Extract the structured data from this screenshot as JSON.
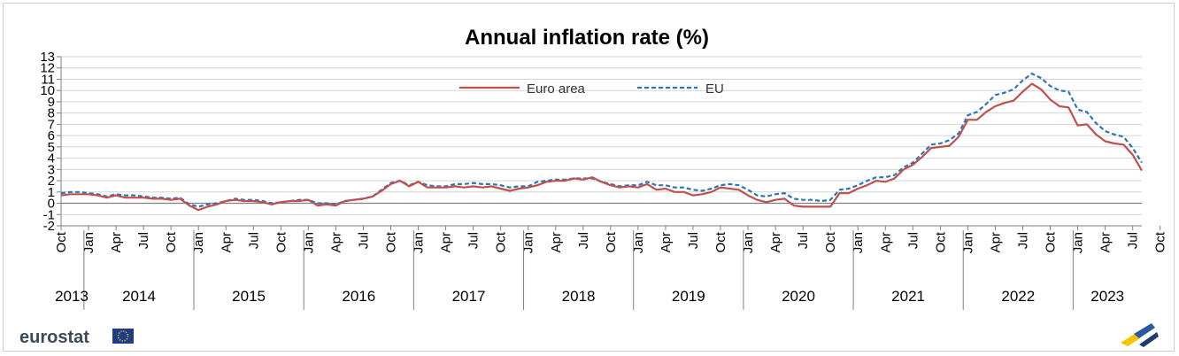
{
  "brand": {
    "name": "eurostat"
  },
  "chart_data": {
    "type": "line",
    "title": "Annual inflation rate (%)",
    "ylim": [
      -2,
      13
    ],
    "yticks": [
      -2,
      -1,
      0,
      1,
      2,
      3,
      4,
      5,
      6,
      7,
      8,
      9,
      10,
      11,
      12,
      13
    ],
    "grid": true,
    "legend_position": "top-center",
    "x_tick_labels": [
      "Oct",
      "Jan",
      "Apr",
      "Jul",
      "Oct",
      "Jan",
      "Apr",
      "Jul",
      "Oct",
      "Jan",
      "Apr",
      "Jul",
      "Oct",
      "Jan",
      "Apr",
      "Jul",
      "Oct",
      "Jan",
      "Apr",
      "Jul",
      "Oct",
      "Jan",
      "Apr",
      "Jul",
      "Oct",
      "Jan",
      "Apr",
      "Jul",
      "Oct",
      "Jan",
      "Apr",
      "Jul",
      "Oct",
      "Jan",
      "Apr",
      "Jul",
      "Oct",
      "Jan",
      "Apr",
      "Jul",
      "Oct"
    ],
    "years": [
      "2013",
      "2014",
      "2015",
      "2016",
      "2017",
      "2018",
      "2019",
      "2020",
      "2021",
      "2022",
      "2023"
    ],
    "start": "2013-10",
    "end": "2023-10",
    "series": [
      {
        "name": "Euro area",
        "color": "#c0504d",
        "dash": "solid",
        "values": [
          0.7,
          0.8,
          0.8,
          0.8,
          0.7,
          0.5,
          0.7,
          0.5,
          0.5,
          0.5,
          0.4,
          0.4,
          0.3,
          0.4,
          -0.2,
          -0.6,
          -0.3,
          -0.1,
          0.2,
          0.3,
          0.2,
          0.2,
          0.1,
          -0.1,
          0.1,
          0.2,
          0.2,
          0.3,
          -0.2,
          -0.1,
          -0.2,
          0.2,
          0.3,
          0.4,
          0.6,
          1.1,
          1.7,
          2.0,
          1.5,
          1.9,
          1.4,
          1.4,
          1.4,
          1.5,
          1.4,
          1.5,
          1.4,
          1.5,
          1.3,
          1.1,
          1.3,
          1.4,
          1.6,
          1.9,
          2.0,
          2.0,
          2.2,
          2.1,
          2.3,
          1.9,
          1.6,
          1.4,
          1.5,
          1.4,
          1.7,
          1.2,
          1.3,
          1.0,
          1.0,
          0.7,
          0.8,
          1.0,
          1.4,
          1.3,
          1.2,
          0.7,
          0.3,
          0.1,
          0.3,
          0.4,
          -0.2,
          -0.3,
          -0.3,
          -0.3,
          -0.3,
          0.9,
          0.9,
          1.3,
          1.6,
          2.0,
          1.9,
          2.2,
          3.0,
          3.4,
          4.1,
          4.9,
          5.0,
          5.1,
          5.9,
          7.4,
          7.4,
          8.1,
          8.6,
          8.9,
          9.1,
          9.9,
          10.6,
          10.1,
          9.2,
          8.6,
          8.5,
          6.9,
          7.0,
          6.1,
          5.5,
          5.3,
          5.2,
          4.3,
          2.9
        ]
      },
      {
        "name": "EU",
        "color": "#2e75b6",
        "dash": "dashed",
        "values": [
          0.9,
          1.0,
          1.0,
          0.9,
          0.8,
          0.6,
          0.8,
          0.7,
          0.7,
          0.6,
          0.5,
          0.5,
          0.4,
          0.5,
          -0.1,
          -0.3,
          -0.1,
          0.0,
          0.2,
          0.4,
          0.3,
          0.3,
          0.2,
          0.0,
          0.1,
          0.2,
          0.3,
          0.3,
          0.0,
          0.0,
          -0.1,
          0.2,
          0.3,
          0.4,
          0.6,
          1.2,
          1.8,
          2.0,
          1.6,
          1.9,
          1.6,
          1.5,
          1.5,
          1.7,
          1.7,
          1.8,
          1.7,
          1.7,
          1.6,
          1.4,
          1.5,
          1.5,
          1.9,
          2.0,
          2.1,
          2.1,
          2.2,
          2.2,
          2.2,
          1.9,
          1.7,
          1.5,
          1.6,
          1.6,
          1.9,
          1.6,
          1.6,
          1.4,
          1.4,
          1.2,
          1.1,
          1.3,
          1.6,
          1.7,
          1.6,
          1.2,
          0.7,
          0.6,
          0.8,
          0.9,
          0.4,
          0.3,
          0.3,
          0.2,
          0.3,
          1.2,
          1.3,
          1.6,
          2.0,
          2.3,
          2.3,
          2.5,
          3.2,
          3.6,
          4.4,
          5.2,
          5.3,
          5.6,
          6.2,
          7.8,
          8.1,
          8.8,
          9.6,
          9.8,
          10.1,
          10.9,
          11.5,
          11.1,
          10.4,
          10.0,
          9.9,
          8.3,
          8.1,
          7.1,
          6.4,
          6.1,
          5.9,
          4.9,
          3.6
        ]
      }
    ]
  }
}
